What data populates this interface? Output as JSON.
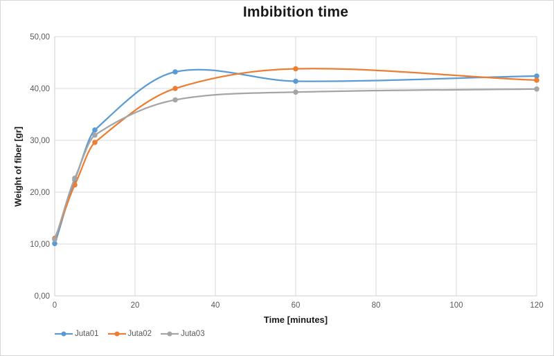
{
  "chart_data": {
    "type": "line",
    "title": "Imbibition time",
    "xlabel": "Time [minutes]",
    "ylabel": "Weight of fiber [gr]",
    "x": [
      0,
      5,
      10,
      30,
      60,
      120
    ],
    "series": [
      {
        "name": "Juta01",
        "color": "#5B9BD5",
        "values": [
          10.1,
          22.4,
          32.0,
          43.2,
          41.4,
          42.4
        ]
      },
      {
        "name": "Juta02",
        "color": "#ED7D31",
        "values": [
          11.1,
          21.4,
          29.6,
          40.0,
          43.8,
          41.6
        ]
      },
      {
        "name": "Juta03",
        "color": "#A5A5A5",
        "values": [
          10.9,
          22.7,
          31.0,
          37.8,
          39.3,
          39.9
        ]
      }
    ],
    "xlim": [
      0,
      120
    ],
    "ylim": [
      0,
      50
    ],
    "x_ticks": [
      {
        "v": 0,
        "label": "0"
      },
      {
        "v": 20,
        "label": "20"
      },
      {
        "v": 40,
        "label": "40"
      },
      {
        "v": 60,
        "label": "60"
      },
      {
        "v": 80,
        "label": "80"
      },
      {
        "v": 100,
        "label": "100"
      },
      {
        "v": 120,
        "label": "120"
      }
    ],
    "y_ticks": [
      {
        "v": 0,
        "label": "0,00"
      },
      {
        "v": 10,
        "label": "10,00"
      },
      {
        "v": 20,
        "label": "20,00"
      },
      {
        "v": 30,
        "label": "30,00"
      },
      {
        "v": 40,
        "label": "40,00"
      },
      {
        "v": 50,
        "label": "50,00"
      }
    ],
    "grid": true,
    "smooth": true,
    "marker": "circle",
    "legend_position": "bottom-left"
  },
  "styles": {
    "grid_color": "#D9D9D9",
    "axis_color": "#CFCFCF",
    "tick_label_color": "#595959",
    "title_color": "#1a1a1a",
    "background": "#FFFFFF"
  }
}
